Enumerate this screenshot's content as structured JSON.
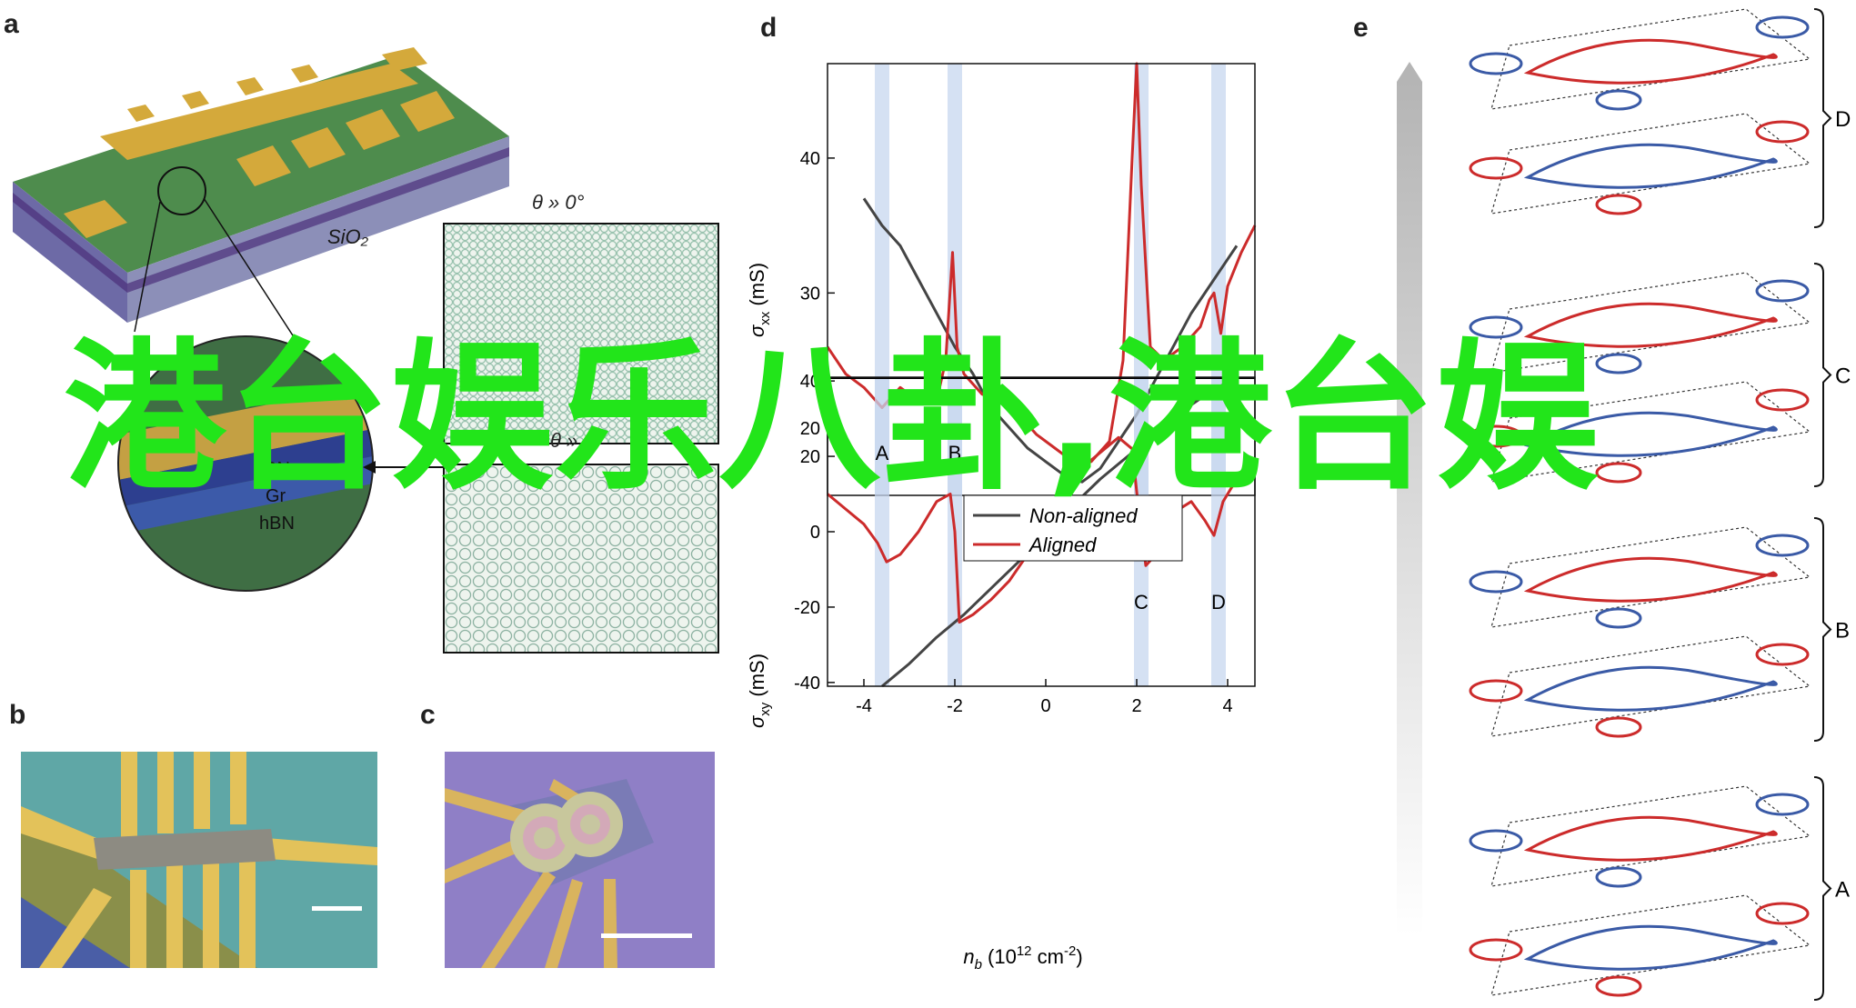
{
  "panels": {
    "a": {
      "letter": "a",
      "substrate_label": "SiO₂",
      "inset_label": "θ » 0°",
      "zoom_layers": [
        "hBN",
        "Gr",
        "hBN"
      ]
    },
    "b": {
      "letter": "b"
    },
    "c": {
      "letter": "c"
    },
    "d": {
      "letter": "d",
      "chart_data": [
        {
          "type": "line",
          "ylabel": "σxx (mS)",
          "xlim": [
            -4.8,
            4.6
          ],
          "ylim": [
            15,
            47
          ],
          "yticks": [
            20,
            30,
            40
          ],
          "series": [
            {
              "name": "Non-aligned",
              "color": "#444444",
              "x": [
                -4.0,
                -3.6,
                -3.2,
                -2.8,
                -2.4,
                -2.0,
                -1.6,
                -1.2,
                -0.8,
                -0.4,
                0.0,
                0.4,
                0.8,
                1.2,
                1.6,
                2.0,
                2.4,
                2.8,
                3.2,
                3.6,
                4.0,
                4.2
              ],
              "y": [
                37,
                35,
                33.5,
                31,
                28.5,
                26,
                24,
                21.5,
                20,
                18.5,
                17.5,
                16.5,
                16,
                17,
                19,
                21,
                23.5,
                26,
                28.5,
                30.5,
                32.5,
                33.5
              ]
            },
            {
              "name": "Aligned",
              "color": "#cc2b2b",
              "x": [
                -4.8,
                -4.4,
                -4.0,
                -3.6,
                -3.2,
                -2.8,
                -2.4,
                -2.2,
                -2.05,
                -1.95,
                -1.8,
                -1.4,
                -1.0,
                -0.6,
                -0.2,
                0.2,
                0.6,
                1.0,
                1.4,
                1.7,
                1.9,
                2.0,
                2.1,
                2.3,
                2.6,
                3.0,
                3.4,
                3.6,
                3.7,
                3.85,
                4.0,
                4.3,
                4.6
              ],
              "y": [
                26,
                24,
                23,
                21.5,
                23,
                22,
                22,
                25,
                33,
                26,
                24,
                22.5,
                22,
                21,
                19.5,
                18.5,
                17.5,
                17.5,
                19,
                25,
                40,
                47,
                38,
                26,
                25,
                26,
                27.5,
                29.5,
                30,
                27,
                30.5,
                33,
                35
              ]
            }
          ]
        },
        {
          "type": "line",
          "ylabel": "σxy (mS)",
          "xlabel": "n_b (10¹² cm⁻²)",
          "xlim": [
            -4.8,
            4.6
          ],
          "ylim": [
            -41,
            41
          ],
          "xticks": [
            -4,
            -2,
            0,
            2,
            4
          ],
          "yticks": [
            -40,
            -20,
            0,
            20,
            40
          ],
          "series": [
            {
              "name": "Non-aligned",
              "color": "#444444",
              "x": [
                -3.6,
                -3.0,
                -2.4,
                -1.8,
                -1.2,
                -0.6,
                0.0,
                0.6,
                1.2,
                1.8,
                2.4,
                3.0,
                3.6,
                4.2
              ],
              "y": [
                -41,
                -35,
                -28,
                -22,
                -15,
                -8,
                0,
                7,
                14,
                20,
                26,
                32,
                37,
                41
              ]
            },
            {
              "name": "Aligned",
              "color": "#cc2b2b",
              "x": [
                -4.8,
                -4.4,
                -4.0,
                -3.7,
                -3.5,
                -3.2,
                -2.8,
                -2.4,
                -2.1,
                -2.0,
                -1.9,
                -1.6,
                -1.2,
                -0.8,
                -0.4,
                0.0,
                0.4,
                0.8,
                1.2,
                1.6,
                1.9,
                2.05,
                2.2,
                2.5,
                2.8,
                3.2,
                3.5,
                3.7,
                3.9,
                4.2,
                4.6
              ],
              "y": [
                10,
                6,
                2,
                -3,
                -8,
                -6,
                0,
                8,
                10,
                0,
                -24,
                -22,
                -18,
                -13,
                -6,
                2,
                10,
                17,
                21,
                25,
                22,
                5,
                -9,
                -5,
                5,
                8,
                3,
                -1,
                8,
                14,
                19
              ]
            }
          ]
        }
      ],
      "legend": [
        {
          "label": "Non-aligned",
          "color": "#444444"
        },
        {
          "label": "Aligned",
          "color": "#cc2b2b"
        }
      ],
      "band_labels_bottom": [
        "C",
        "D"
      ],
      "band_labels_top_hidden": [
        "A",
        "B"
      ],
      "yticks_top": [
        "20",
        "30",
        "40"
      ],
      "yticks_bottom": [
        "-40",
        "-20",
        "0",
        "20",
        "40"
      ],
      "xticks": [
        "-4",
        "-2",
        "0",
        "2",
        "4"
      ],
      "ylabel_top": "σ",
      "ylabel_top_sub": "xx",
      "ylabel_top_unit": " (mS)",
      "ylabel_bottom": "σ",
      "ylabel_bottom_sub": "xy",
      "ylabel_bottom_unit": " (mS)",
      "xlabel_var": "n",
      "xlabel_sub": "b",
      "xlabel_unit_pre": " (10",
      "xlabel_exp1": "12",
      "xlabel_mid": " cm",
      "xlabel_exp2": "-2",
      "xlabel_end": ")"
    },
    "e": {
      "letter": "e",
      "brackets": [
        "D",
        "C",
        "B",
        "A"
      ]
    }
  },
  "overlay_text": "港台娱乐八卦,港台娱",
  "colors": {
    "red": "#cc2b2b",
    "blue": "#3a5aa6",
    "dark_line": "#444444",
    "band": "#c7d7ef",
    "watermark": "#22e51a",
    "gold": "#d4a93b",
    "substrate_green": "#3c7a3e"
  }
}
